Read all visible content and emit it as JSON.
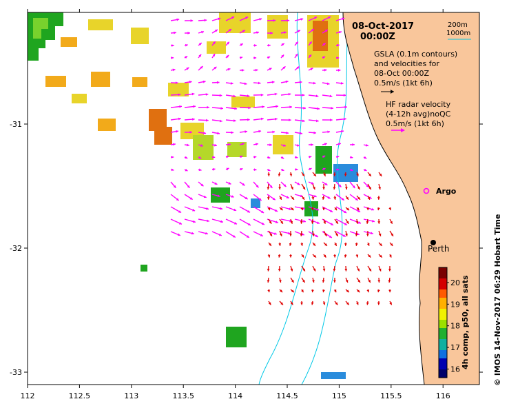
{
  "title": {
    "date": "08-Oct-2017",
    "time": "00:00Z"
  },
  "depth_legend": {
    "line1": "200m",
    "line2": "1000m"
  },
  "legend": {
    "gsla_line1": "GSLA (0.1m contours)",
    "gsla_line2": "and velocities for",
    "gsla_line3": "08-Oct 00:00Z",
    "gsla_line4": "0.5m/s (1kt 6h)",
    "hf_line1": "HF radar velocity",
    "hf_line2": "(4-12h avg)noQC",
    "hf_line3": "0.5m/s (1kt 6h)"
  },
  "places": {
    "argo": "Argo",
    "perth": "Perth"
  },
  "x_axis": {
    "min": 112,
    "max": 116.35,
    "ticks": [
      "112",
      "112.5",
      "113",
      "113.5",
      "114",
      "114.5",
      "115",
      "115.5",
      "116"
    ]
  },
  "y_axis": {
    "min": -33.1,
    "max": -30.1,
    "ticks": [
      "-31",
      "-32",
      "-33"
    ]
  },
  "colorbar": {
    "min": 15.6,
    "max": 20.7,
    "ticks": [
      "16",
      "17",
      "18",
      "19",
      "20"
    ],
    "label": "4h comp, p50, all sats"
  },
  "credit": "© IMOS 14-Nov-2017 06:29 Hobart Time",
  "colors": {
    "land": "#f9c69b",
    "gsla_vector": "#ff00ff",
    "hf_vector": "#e00000",
    "isobath": "#00c8e6"
  }
}
